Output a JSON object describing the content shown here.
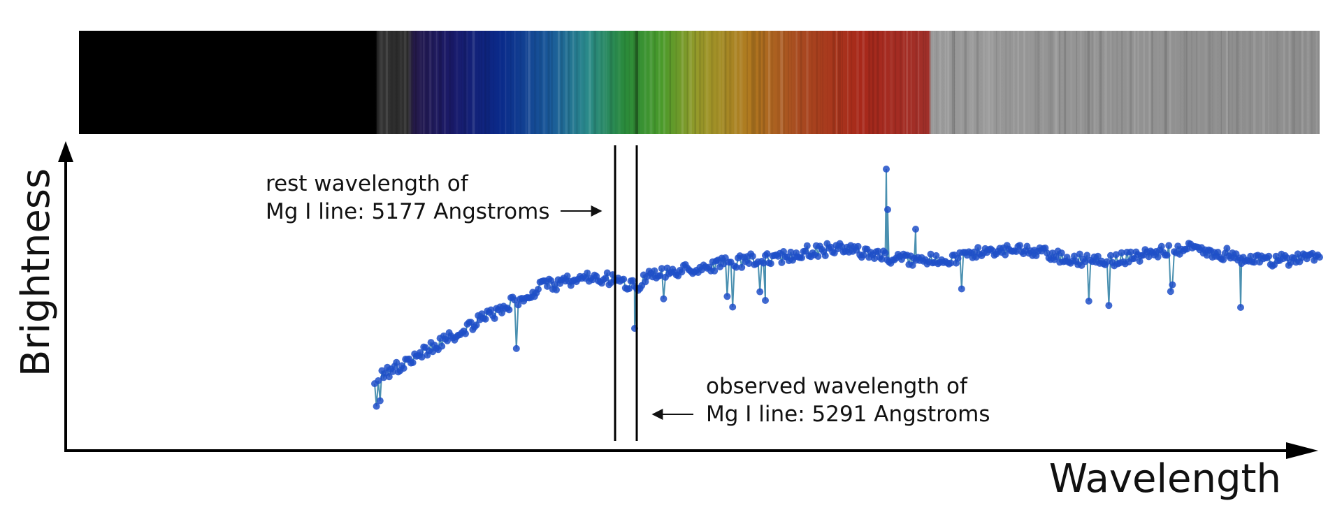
{
  "axes": {
    "y_label": "Brightness",
    "x_label": "Wavelength"
  },
  "annotations": {
    "rest": {
      "line1": "rest wavelength of",
      "line2": "Mg I line: 5177 Angstroms"
    },
    "observed": {
      "line1": "observed wavelength of",
      "line2": "Mg I line: 5291 Angstroms"
    }
  }
}
